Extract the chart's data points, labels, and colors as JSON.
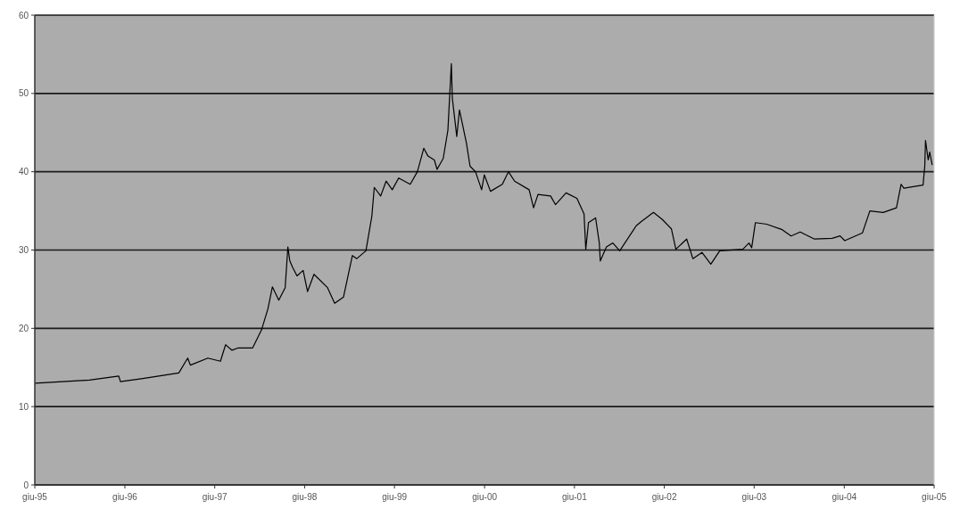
{
  "chart_data": {
    "type": "line",
    "grid": "y",
    "ylim": [
      0,
      60
    ],
    "yticks": [
      0,
      10,
      20,
      30,
      40,
      50,
      60
    ],
    "xlim": [
      "1995-06-01",
      "2005-06-01"
    ],
    "xticks": [
      {
        "value": "1995-06-01",
        "label": "giu-95"
      },
      {
        "value": "1996-06-01",
        "label": "giu-96"
      },
      {
        "value": "1997-06-01",
        "label": "giu-97"
      },
      {
        "value": "1998-06-01",
        "label": "giu-98"
      },
      {
        "value": "1999-06-01",
        "label": "giu-99"
      },
      {
        "value": "2000-06-01",
        "label": "giu-00"
      },
      {
        "value": "2001-06-01",
        "label": "giu-01"
      },
      {
        "value": "2002-06-01",
        "label": "giu-02"
      },
      {
        "value": "2003-06-01",
        "label": "giu-03"
      },
      {
        "value": "2004-06-01",
        "label": "giu-04"
      },
      {
        "value": "2005-06-01",
        "label": "giu-05"
      }
    ],
    "series": [
      {
        "color": "#000000",
        "x": [
          "1995-06-04",
          "1996-01-09",
          "1996-05-07",
          "1996-05-14",
          "1996-08-13",
          "1997-01-06",
          "1997-02-11",
          "1997-02-22",
          "1997-05-04",
          "1997-06-24",
          "1997-07-15",
          "1997-08-10",
          "1997-09-05",
          "1997-11-02",
          "1997-12-08",
          "1998-01-03",
          "1998-01-21",
          "1998-02-16",
          "1998-03-14",
          "1998-03-25",
          "1998-04-02",
          "1998-04-13",
          "1998-05-01",
          "1998-05-26",
          "1998-06-13",
          "1998-07-09",
          "1998-09-02",
          "1998-10-01",
          "1998-11-06",
          "1998-12-12",
          "1998-12-30",
          "1999-02-05",
          "1999-03-01",
          "1999-03-11",
          "1999-04-06",
          "1999-04-28",
          "1999-05-23",
          "1999-06-18",
          "1999-08-04",
          "1999-09-02",
          "1999-09-28",
          "1999-10-15",
          "1999-11-10",
          "1999-11-21",
          "1999-12-16",
          "2000-01-04",
          "2000-01-18",
          "2000-01-22",
          "2000-02-09",
          "2000-02-20",
          "2000-03-19",
          "2000-04-03",
          "2000-04-25",
          "2000-05-20",
          "2000-05-31",
          "2000-06-25",
          "2000-08-12",
          "2000-09-06",
          "2000-10-01",
          "2000-11-29",
          "2000-12-17",
          "2001-01-04",
          "2001-02-24",
          "2001-03-16",
          "2001-04-28",
          "2001-06-11",
          "2001-07-10",
          "2001-07-17",
          "2001-07-28",
          "2001-08-26",
          "2001-09-10",
          "2001-09-14",
          "2001-10-09",
          "2001-11-04",
          "2001-12-02",
          "2002-02-07",
          "2002-03-02",
          "2002-04-18",
          "2002-05-24",
          "2002-06-30",
          "2002-07-18",
          "2002-08-31",
          "2002-09-25",
          "2002-11-01",
          "2002-12-07",
          "2003-01-12",
          "2003-04-16",
          "2003-05-11",
          "2003-05-22",
          "2003-06-06",
          "2003-07-22",
          "2003-09-23",
          "2003-10-29",
          "2003-12-05",
          "2004-02-01",
          "2004-04-13",
          "2004-05-15",
          "2004-06-03",
          "2004-08-14",
          "2004-09-13",
          "2004-11-06",
          "2004-12-30",
          "2005-01-18",
          "2005-01-29",
          "2005-04-17",
          "2005-04-24",
          "2005-04-27",
          "2005-05-08",
          "2005-05-14",
          "2005-05-24"
        ],
        "values": [
          13.0,
          13.4,
          13.9,
          13.2,
          13.6,
          14.3,
          16.2,
          15.3,
          16.2,
          15.8,
          17.9,
          17.2,
          17.5,
          17.5,
          19.8,
          22.5,
          25.3,
          23.6,
          25.2,
          30.4,
          28.6,
          27.8,
          26.7,
          27.4,
          24.7,
          26.9,
          25.2,
          23.2,
          24.0,
          29.3,
          28.9,
          29.9,
          34.3,
          38.0,
          36.9,
          38.8,
          37.7,
          39.2,
          38.4,
          40.0,
          43.0,
          42.0,
          41.5,
          40.3,
          41.7,
          45.3,
          53.8,
          49.4,
          44.5,
          47.9,
          43.7,
          40.7,
          40.0,
          37.7,
          39.6,
          37.5,
          38.4,
          40.0,
          38.8,
          37.7,
          35.4,
          37.1,
          36.9,
          35.8,
          37.3,
          36.6,
          34.6,
          30.1,
          33.5,
          34.1,
          30.9,
          28.6,
          30.4,
          30.9,
          29.9,
          33.1,
          33.7,
          34.8,
          33.9,
          32.7,
          30.1,
          31.4,
          28.9,
          29.7,
          28.2,
          29.9,
          30.1,
          30.9,
          30.3,
          33.5,
          33.3,
          32.6,
          31.8,
          32.3,
          31.4,
          31.5,
          31.8,
          31.2,
          32.2,
          35.0,
          34.8,
          35.4,
          38.4,
          37.9,
          38.3,
          40.7,
          44.0,
          41.5,
          42.5,
          40.9
        ]
      }
    ]
  }
}
